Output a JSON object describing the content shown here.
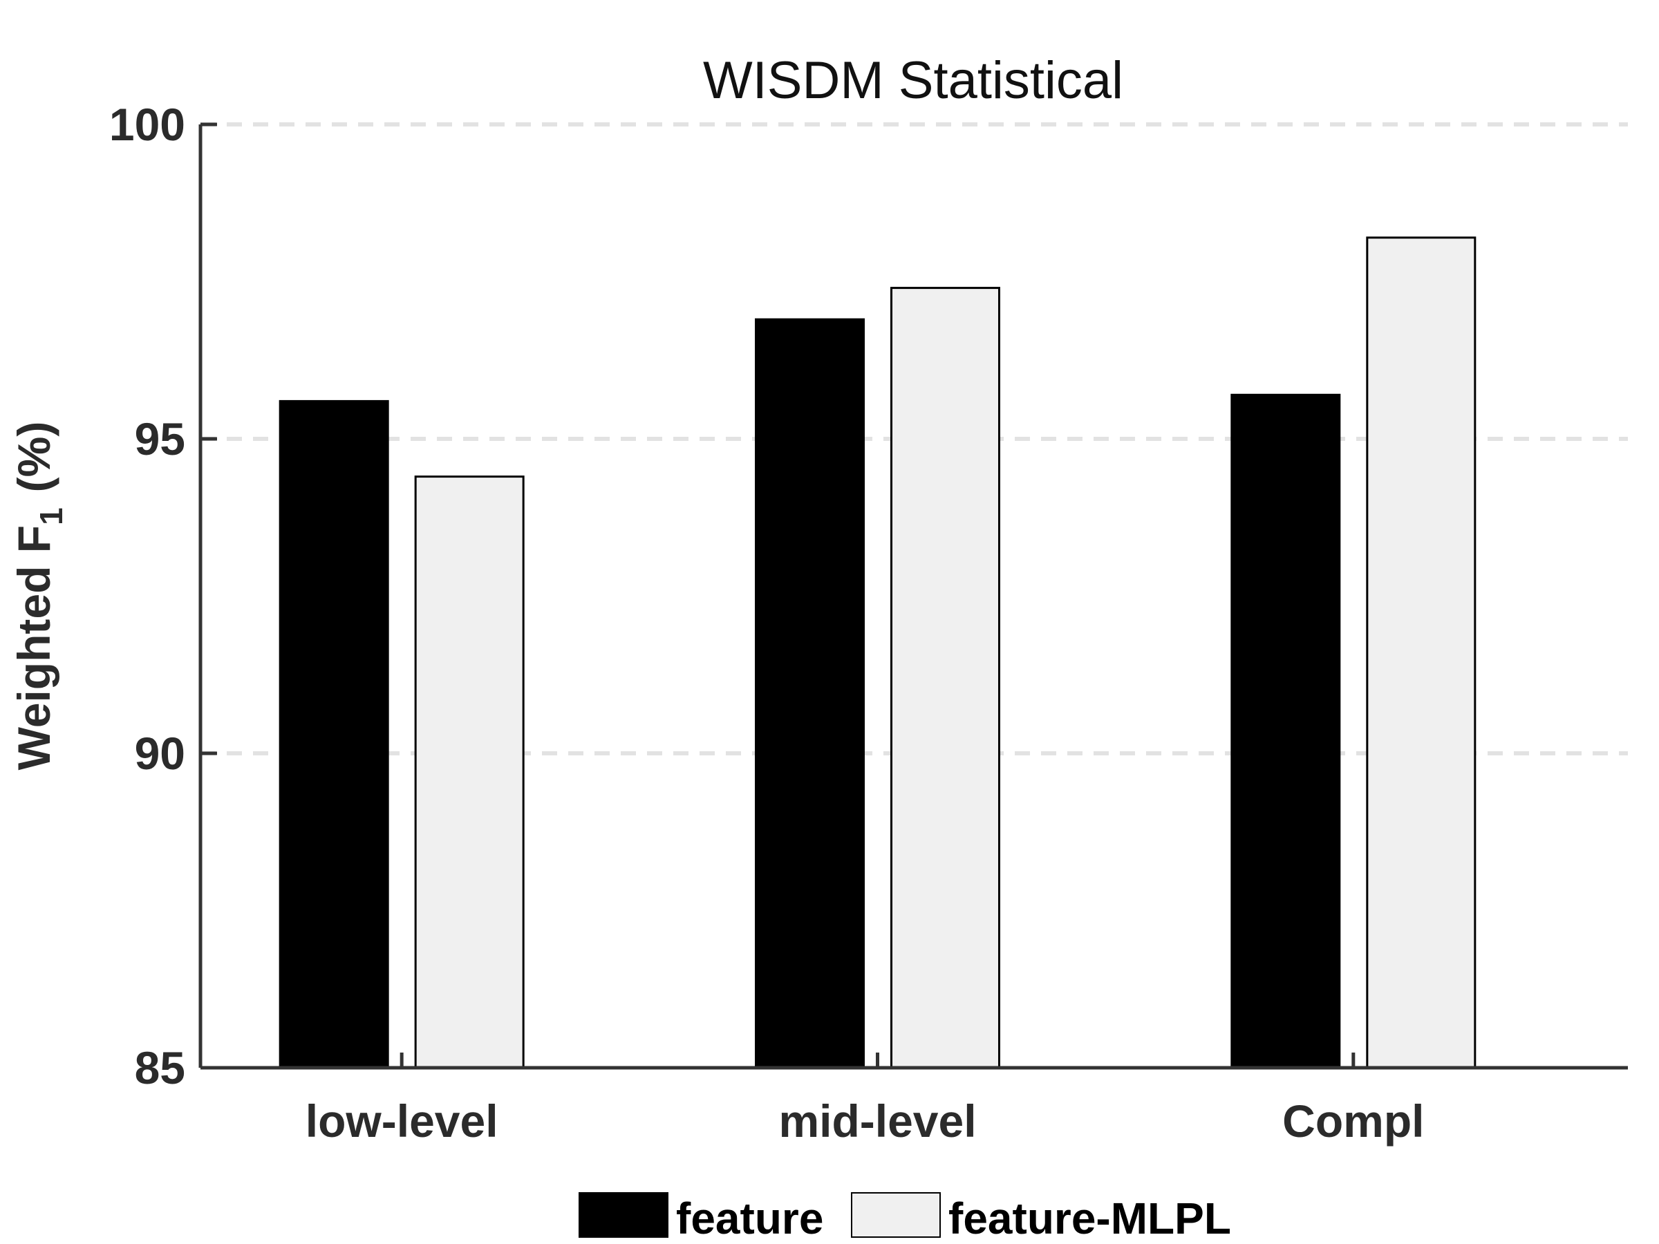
{
  "chart_data": {
    "type": "bar",
    "title": "WISDM   Statistical",
    "ylabel": "Weighted  F",
    "ylabel_subscript": "1",
    "ylabel_unit": "(%)",
    "xlabel": "",
    "categories": [
      "low-level",
      "mid-level",
      "Compl"
    ],
    "series": [
      {
        "name": "feature",
        "color": "#000000",
        "values": [
          95.6,
          96.9,
          95.7
        ]
      },
      {
        "name": "feature-MLPL",
        "color": "#f0f0f0",
        "values": [
          94.4,
          97.4,
          98.2
        ]
      }
    ],
    "ylim": [
      85,
      100
    ],
    "yticks": [
      85,
      90,
      95,
      100
    ],
    "grid": true,
    "legend_position": "bottom-center"
  }
}
